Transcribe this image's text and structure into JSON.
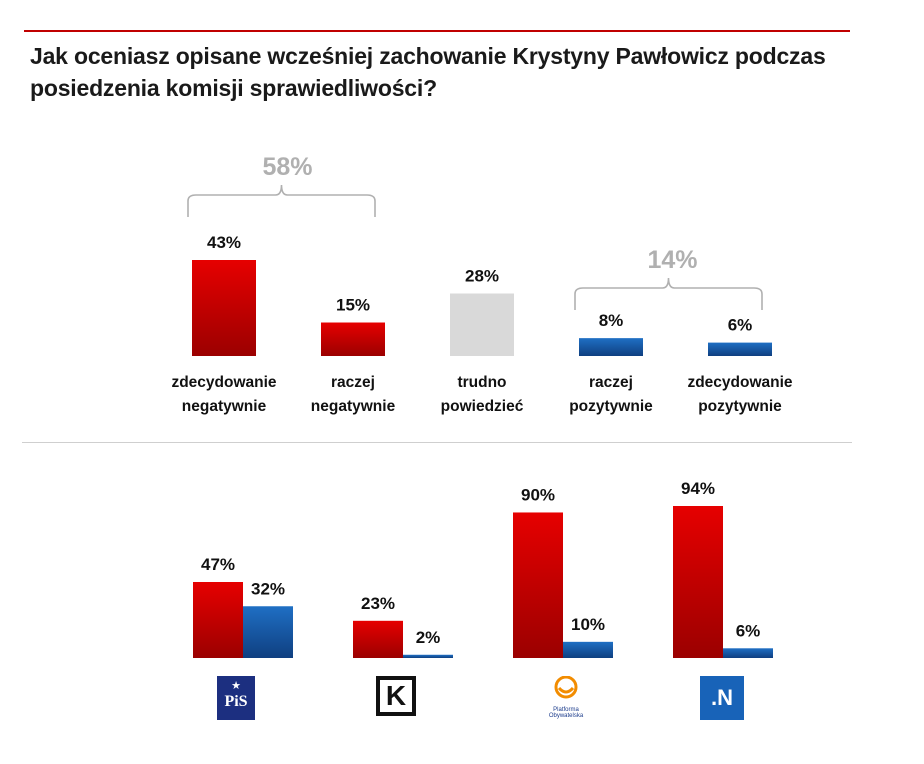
{
  "title": "Jak oceniasz opisane wcześniej zachowanie Krystyny Pawłowicz podczas posiedzenia komisji sprawiedliwości?",
  "colors": {
    "negative": "#e60000",
    "negative_dark": "#9b0000",
    "neutral": "#d9d9d9",
    "positive": "#1f6fc4",
    "positive_dark": "#0f3f80",
    "bracket": "#b0b0b0",
    "title_rule": "#c00000"
  },
  "chart_data": [
    {
      "type": "bar",
      "title": "",
      "categories": [
        "zdecydowanie negatywnie",
        "raczej negatywnie",
        "trudno powiedzieć",
        "raczej pozytywnie",
        "zdecydowanie pozytywnie"
      ],
      "category_lines": [
        [
          "zdecydowanie",
          "negatywnie"
        ],
        [
          "raczej",
          "negatywnie"
        ],
        [
          "trudno",
          "powiedzieć"
        ],
        [
          "raczej",
          "pozytywnie"
        ],
        [
          "zdecydowanie",
          "pozytywnie"
        ]
      ],
      "values": [
        43,
        15,
        28,
        8,
        6
      ],
      "value_labels": [
        "43%",
        "15%",
        "28%",
        "8%",
        "6%"
      ],
      "bar_kinds": [
        "negative",
        "negative",
        "neutral",
        "positive",
        "positive"
      ],
      "ylim": [
        0,
        50
      ],
      "groups": [
        {
          "label": "58%",
          "value": 58,
          "covers": [
            0,
            1
          ]
        },
        {
          "label": "14%",
          "value": 14,
          "covers": [
            3,
            4
          ]
        }
      ]
    },
    {
      "type": "bar",
      "title": "",
      "categories": [
        "PiS",
        "Kukiz'15",
        "Platforma Obywatelska",
        "Nowoczesna"
      ],
      "series": [
        {
          "name": "negatywnie",
          "values": [
            47,
            23,
            90,
            94
          ],
          "labels": [
            "47%",
            "23%",
            "90%",
            "94%"
          ]
        },
        {
          "name": "pozytywnie",
          "values": [
            32,
            2,
            10,
            6
          ],
          "labels": [
            "32%",
            "2%",
            "10%",
            "6%"
          ]
        }
      ],
      "ylim": [
        0,
        100
      ]
    }
  ],
  "logos": {
    "pis": {
      "star": "★",
      "text": "PiS"
    },
    "kukiz": {
      "text": "K"
    },
    "po": {
      "mark": "◡",
      "text_line1": "Platforma",
      "text_line2": "Obywatelska"
    },
    "n": {
      "text": ".N"
    }
  }
}
